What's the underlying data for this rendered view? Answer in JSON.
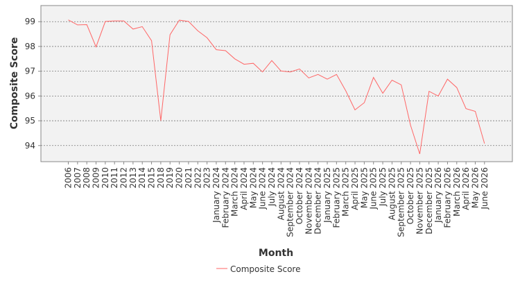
{
  "chart_data": {
    "type": "line",
    "xlabel": "Month",
    "ylabel": "Composite Score",
    "ylim": [
      93.35,
      99.65
    ],
    "yticks": [
      94,
      95,
      96,
      97,
      98,
      99
    ],
    "grid": {
      "horizontal": true,
      "vertical": false,
      "style": "dotted"
    },
    "legend_position": "bottom-center",
    "categories": [
      "2006",
      "2007",
      "2008",
      "2009",
      "2010",
      "2011",
      "2012",
      "2013",
      "2014",
      "2015",
      "2018",
      "2019",
      "2020",
      "2021",
      "2022",
      "2023",
      "January 2024",
      "February 2024",
      "March 2024",
      "April 2024",
      "May 2024",
      "June 2024",
      "July 2024",
      "August 2024",
      "September 2024",
      "October 2024",
      "November 2024",
      "December 2024",
      "January 2025",
      "February 2025",
      "March 2025",
      "April 2025",
      "May 2025",
      "June 2025",
      "July 2025",
      "August 2025",
      "September 2025",
      "October 2025",
      "November 2025",
      "December 2025",
      "January 2026",
      "February 2026",
      "March 2026",
      "April 2026",
      "May 2026",
      "June 2026"
    ],
    "series": [
      {
        "name": "Composite Score",
        "color": "#ff6666",
        "values": [
          99.07,
          98.87,
          98.88,
          97.98,
          99.01,
          99.03,
          99.03,
          98.7,
          98.8,
          98.23,
          95.0,
          98.47,
          99.06,
          99.01,
          98.63,
          98.35,
          97.87,
          97.83,
          97.5,
          97.28,
          97.32,
          96.97,
          97.43,
          97.01,
          96.97,
          97.09,
          96.73,
          96.87,
          96.68,
          96.87,
          96.21,
          95.44,
          95.73,
          96.75,
          96.11,
          96.64,
          96.45,
          94.82,
          93.66,
          96.19,
          96.0,
          96.68,
          96.34,
          95.49,
          95.38,
          94.08
        ]
      }
    ]
  }
}
